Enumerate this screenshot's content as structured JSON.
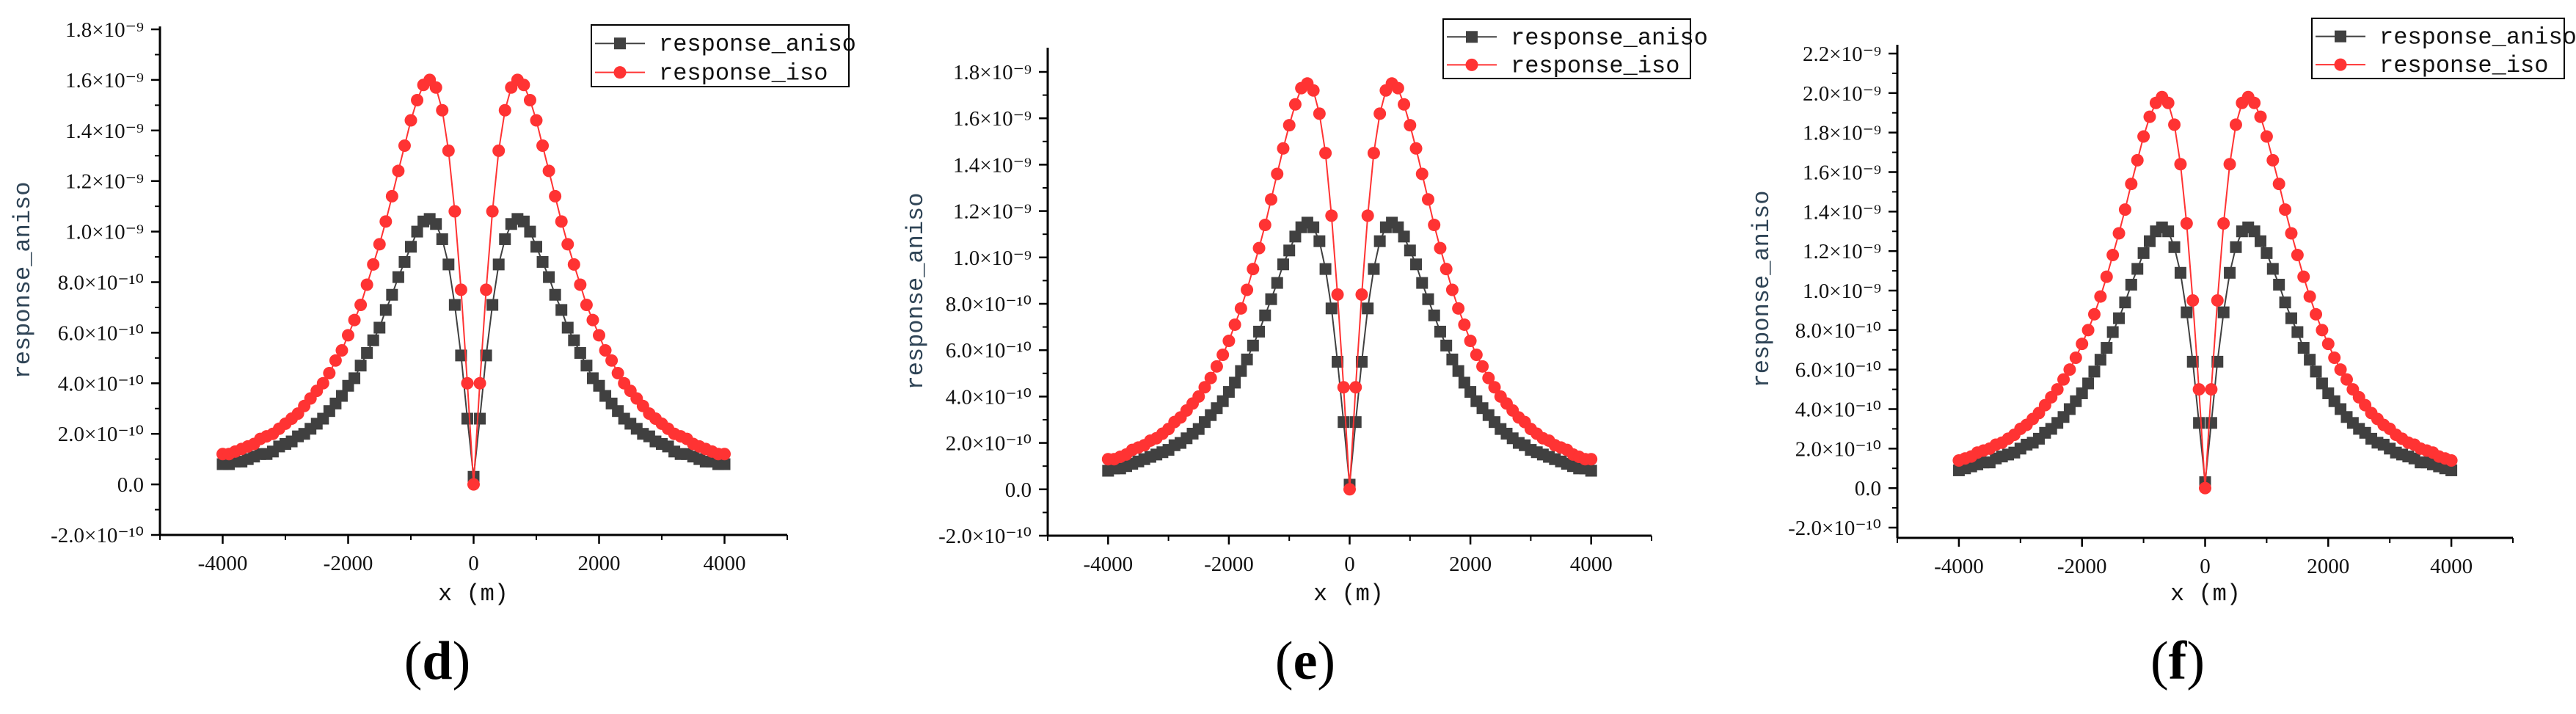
{
  "chart_data": [
    {
      "type": "line",
      "panel_label": "d",
      "xlabel": "x (m)",
      "ylabel": "response_aniso",
      "xlim": [
        -5000,
        5000
      ],
      "ylim": [
        -2e-10,
        1.8e-09
      ],
      "grid": false,
      "legend_placement": "top-right",
      "y_value_multiplier": 1e-10,
      "x": {
        "start": -4000,
        "end": 4000,
        "step": 100
      },
      "xticks": [
        {
          "value": -4000,
          "label": "-4000"
        },
        {
          "value": -2000,
          "label": "-2000"
        },
        {
          "value": 0,
          "label": "0"
        },
        {
          "value": 2000,
          "label": "2000"
        },
        {
          "value": 4000,
          "label": "4000"
        }
      ],
      "yticks": [
        {
          "value": -2e-10,
          "label": "-2.0×10⁻¹⁰"
        },
        {
          "value": 0,
          "label": "0.0"
        },
        {
          "value": 2e-10,
          "label": "2.0×10⁻¹⁰"
        },
        {
          "value": 4e-10,
          "label": "4.0×10⁻¹⁰"
        },
        {
          "value": 6e-10,
          "label": "6.0×10⁻¹⁰"
        },
        {
          "value": 8e-10,
          "label": "8.0×10⁻¹⁰"
        },
        {
          "value": 1e-09,
          "label": "1.0×10⁻⁹"
        },
        {
          "value": 1.2e-09,
          "label": "1.2×10⁻⁹"
        },
        {
          "value": 1.4e-09,
          "label": "1.4×10⁻⁹"
        },
        {
          "value": 1.6e-09,
          "label": "1.6×10⁻⁹"
        },
        {
          "value": 1.8e-09,
          "label": "1.8×10⁻⁹"
        }
      ],
      "series": [
        {
          "name": "response_aniso",
          "color": "#404040",
          "marker": "square",
          "values": [
            0.8,
            0.8,
            0.9,
            0.9,
            1.0,
            1.1,
            1.2,
            1.2,
            1.3,
            1.5,
            1.6,
            1.7,
            1.9,
            2.0,
            2.2,
            2.4,
            2.6,
            2.9,
            3.2,
            3.5,
            3.9,
            4.2,
            4.7,
            5.2,
            5.7,
            6.2,
            6.9,
            7.5,
            8.2,
            8.8,
            9.4,
            10.0,
            10.4,
            10.5,
            10.3,
            9.7,
            8.7,
            7.1,
            5.1,
            2.6,
            0.3,
            2.6,
            5.1,
            7.1,
            8.7,
            9.7,
            10.3,
            10.5,
            10.4,
            10.0,
            9.4,
            8.8,
            8.2,
            7.5,
            6.9,
            6.2,
            5.7,
            5.2,
            4.7,
            4.2,
            3.9,
            3.5,
            3.2,
            2.9,
            2.6,
            2.4,
            2.2,
            2.0,
            1.9,
            1.7,
            1.6,
            1.5,
            1.3,
            1.2,
            1.2,
            1.1,
            1.0,
            0.9,
            0.9,
            0.8,
            0.8
          ]
        },
        {
          "name": "response_iso",
          "color": "#ff3333",
          "marker": "circle",
          "values": [
            1.2,
            1.2,
            1.3,
            1.4,
            1.5,
            1.6,
            1.8,
            1.9,
            2.0,
            2.2,
            2.4,
            2.6,
            2.8,
            3.1,
            3.4,
            3.7,
            4.0,
            4.4,
            4.9,
            5.3,
            5.9,
            6.5,
            7.1,
            7.9,
            8.7,
            9.5,
            10.4,
            11.4,
            12.4,
            13.4,
            14.4,
            15.2,
            15.8,
            16.0,
            15.7,
            14.8,
            13.2,
            10.8,
            7.7,
            4.0,
            0.0,
            4.0,
            7.7,
            10.8,
            13.2,
            14.8,
            15.7,
            16.0,
            15.8,
            15.2,
            14.4,
            13.4,
            12.4,
            11.4,
            10.4,
            9.5,
            8.7,
            7.9,
            7.1,
            6.5,
            5.9,
            5.3,
            4.9,
            4.4,
            4.0,
            3.7,
            3.4,
            3.1,
            2.8,
            2.6,
            2.4,
            2.2,
            2.0,
            1.9,
            1.8,
            1.6,
            1.5,
            1.4,
            1.3,
            1.2,
            1.2
          ]
        }
      ]
    },
    {
      "type": "line",
      "panel_label": "e",
      "xlabel": "x (m)",
      "ylabel": "response_aniso",
      "xlim": [
        -5000,
        5000
      ],
      "ylim": [
        -2e-10,
        1.8e-09
      ],
      "grid": false,
      "legend_placement": "top-right",
      "y_value_multiplier": 1e-10,
      "x": {
        "start": -4000,
        "end": 4000,
        "step": 100
      },
      "xticks": [
        {
          "value": -4000,
          "label": "-4000"
        },
        {
          "value": -2000,
          "label": "-2000"
        },
        {
          "value": 0,
          "label": "0"
        },
        {
          "value": 2000,
          "label": "2000"
        },
        {
          "value": 4000,
          "label": "4000"
        }
      ],
      "yticks": [
        {
          "value": -2e-10,
          "label": "-2.0×10⁻¹⁰"
        },
        {
          "value": 0,
          "label": "0.0"
        },
        {
          "value": 2e-10,
          "label": "2.0×10⁻¹⁰"
        },
        {
          "value": 4e-10,
          "label": "4.0×10⁻¹⁰"
        },
        {
          "value": 6e-10,
          "label": "6.0×10⁻¹⁰"
        },
        {
          "value": 8e-10,
          "label": "8.0×10⁻¹⁰"
        },
        {
          "value": 1e-09,
          "label": "1.0×10⁻⁹"
        },
        {
          "value": 1.2e-09,
          "label": "1.2×10⁻⁹"
        },
        {
          "value": 1.4e-09,
          "label": "1.4×10⁻⁹"
        },
        {
          "value": 1.6e-09,
          "label": "1.6×10⁻⁹"
        },
        {
          "value": 1.8e-09,
          "label": "1.8×10⁻⁹"
        }
      ],
      "series": [
        {
          "name": "response_aniso",
          "color": "#404040",
          "marker": "square",
          "values": [
            0.8,
            0.9,
            0.9,
            1.0,
            1.1,
            1.2,
            1.3,
            1.4,
            1.5,
            1.6,
            1.7,
            1.9,
            2.0,
            2.2,
            2.4,
            2.6,
            2.9,
            3.2,
            3.5,
            3.8,
            4.2,
            4.6,
            5.1,
            5.6,
            6.2,
            6.8,
            7.5,
            8.2,
            8.9,
            9.7,
            10.3,
            10.9,
            11.3,
            11.5,
            11.3,
            10.7,
            9.5,
            7.8,
            5.5,
            2.9,
            0.2,
            2.9,
            5.5,
            7.8,
            9.5,
            10.7,
            11.3,
            11.5,
            11.3,
            10.9,
            10.3,
            9.7,
            8.9,
            8.2,
            7.5,
            6.8,
            6.2,
            5.6,
            5.1,
            4.6,
            4.2,
            3.8,
            3.5,
            3.2,
            2.9,
            2.6,
            2.4,
            2.2,
            2.0,
            1.9,
            1.7,
            1.6,
            1.5,
            1.4,
            1.3,
            1.2,
            1.1,
            1.0,
            0.9,
            0.9,
            0.8
          ]
        },
        {
          "name": "response_iso",
          "color": "#ff3333",
          "marker": "circle",
          "values": [
            1.3,
            1.3,
            1.4,
            1.5,
            1.7,
            1.8,
            1.9,
            2.1,
            2.2,
            2.4,
            2.6,
            2.9,
            3.1,
            3.4,
            3.7,
            4.0,
            4.4,
            4.8,
            5.3,
            5.8,
            6.4,
            7.1,
            7.8,
            8.6,
            9.5,
            10.4,
            11.4,
            12.5,
            13.6,
            14.7,
            15.7,
            16.6,
            17.3,
            17.5,
            17.2,
            16.2,
            14.5,
            11.8,
            8.4,
            4.4,
            0.0,
            4.4,
            8.4,
            11.8,
            14.5,
            16.2,
            17.2,
            17.5,
            17.3,
            16.6,
            15.7,
            14.7,
            13.6,
            12.5,
            11.4,
            10.4,
            9.5,
            8.6,
            7.8,
            7.1,
            6.4,
            5.8,
            5.3,
            4.8,
            4.4,
            4.0,
            3.7,
            3.4,
            3.1,
            2.9,
            2.6,
            2.4,
            2.2,
            2.1,
            1.9,
            1.8,
            1.7,
            1.5,
            1.4,
            1.3,
            1.3
          ]
        }
      ]
    },
    {
      "type": "line",
      "panel_label": "f",
      "xlabel": "x (m)",
      "ylabel": "response_aniso",
      "xlim": [
        -5000,
        5000
      ],
      "ylim": [
        -2.3e-10,
        2.2e-09
      ],
      "grid": false,
      "legend_placement": "top-right",
      "y_value_multiplier": 1e-10,
      "x": {
        "start": -4000,
        "end": 4000,
        "step": 100
      },
      "xticks": [
        {
          "value": -4000,
          "label": "-4000"
        },
        {
          "value": -2000,
          "label": "-2000"
        },
        {
          "value": 0,
          "label": "0"
        },
        {
          "value": 2000,
          "label": "2000"
        },
        {
          "value": 4000,
          "label": "4000"
        }
      ],
      "yticks": [
        {
          "value": -2e-10,
          "label": "-2.0×10⁻¹⁰"
        },
        {
          "value": 0,
          "label": "0.0"
        },
        {
          "value": 2e-10,
          "label": "2.0×10⁻¹⁰"
        },
        {
          "value": 4e-10,
          "label": "4.0×10⁻¹⁰"
        },
        {
          "value": 6e-10,
          "label": "6.0×10⁻¹⁰"
        },
        {
          "value": 8e-10,
          "label": "8.0×10⁻¹⁰"
        },
        {
          "value": 1e-09,
          "label": "1.0×10⁻⁹"
        },
        {
          "value": 1.2e-09,
          "label": "1.2×10⁻⁹"
        },
        {
          "value": 1.4e-09,
          "label": "1.4×10⁻⁹"
        },
        {
          "value": 1.6e-09,
          "label": "1.6×10⁻⁹"
        },
        {
          "value": 1.8e-09,
          "label": "1.8×10⁻⁹"
        },
        {
          "value": 2e-09,
          "label": "2.0×10⁻⁹"
        },
        {
          "value": 2.2e-09,
          "label": "2.2×10⁻⁹"
        }
      ],
      "series": [
        {
          "name": "response_aniso",
          "color": "#404040",
          "marker": "square",
          "values": [
            0.9,
            1.0,
            1.1,
            1.2,
            1.3,
            1.3,
            1.5,
            1.6,
            1.7,
            1.8,
            2.0,
            2.2,
            2.3,
            2.5,
            2.8,
            3.0,
            3.3,
            3.6,
            4.0,
            4.4,
            4.8,
            5.3,
            5.9,
            6.5,
            7.1,
            7.9,
            8.6,
            9.4,
            10.3,
            11.1,
            11.9,
            12.5,
            13.0,
            13.2,
            13.0,
            12.2,
            10.9,
            8.9,
            6.4,
            3.3,
            0.3,
            3.3,
            6.4,
            8.9,
            10.9,
            12.2,
            13.0,
            13.2,
            13.0,
            12.5,
            11.9,
            11.1,
            10.3,
            9.4,
            8.6,
            7.9,
            7.1,
            6.5,
            5.9,
            5.3,
            4.8,
            4.4,
            4.0,
            3.6,
            3.3,
            3.0,
            2.8,
            2.5,
            2.3,
            2.2,
            2.0,
            1.8,
            1.7,
            1.6,
            1.5,
            1.3,
            1.3,
            1.2,
            1.1,
            1.0,
            0.9
          ]
        },
        {
          "name": "response_iso",
          "color": "#ff3333",
          "marker": "circle",
          "values": [
            1.4,
            1.5,
            1.6,
            1.8,
            1.9,
            2.0,
            2.2,
            2.3,
            2.5,
            2.7,
            3.0,
            3.2,
            3.5,
            3.8,
            4.2,
            4.6,
            5.0,
            5.5,
            6.0,
            6.6,
            7.3,
            8.0,
            8.8,
            9.7,
            10.7,
            11.8,
            12.9,
            14.1,
            15.4,
            16.6,
            17.8,
            18.8,
            19.5,
            19.8,
            19.5,
            18.4,
            16.4,
            13.4,
            9.5,
            5.0,
            0.0,
            5.0,
            9.5,
            13.4,
            16.4,
            18.4,
            19.5,
            19.8,
            19.5,
            18.8,
            17.8,
            16.6,
            15.4,
            14.1,
            12.9,
            11.8,
            10.7,
            9.7,
            8.8,
            8.0,
            7.3,
            6.6,
            6.0,
            5.5,
            5.0,
            4.6,
            4.2,
            3.8,
            3.5,
            3.2,
            3.0,
            2.7,
            2.5,
            2.3,
            2.2,
            2.0,
            1.9,
            1.8,
            1.6,
            1.5,
            1.4
          ]
        }
      ]
    }
  ]
}
